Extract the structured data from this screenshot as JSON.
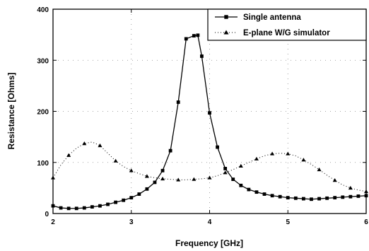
{
  "chart_data": {
    "type": "line",
    "xlabel": "Frequency [GHz]",
    "ylabel": "Resistance [Ohms]",
    "xlim": [
      2,
      6
    ],
    "ylim": [
      0,
      400
    ],
    "xticks": [
      2,
      3,
      4,
      5,
      6
    ],
    "yticks": [
      0,
      100,
      200,
      300,
      400
    ],
    "legend": {
      "position": "top-right"
    },
    "series": [
      {
        "name": "Single antenna",
        "marker": "square",
        "line": "solid",
        "color": "#000000",
        "x": [
          2.0,
          2.1,
          2.2,
          2.3,
          2.4,
          2.5,
          2.6,
          2.7,
          2.8,
          2.9,
          3.0,
          3.1,
          3.2,
          3.3,
          3.4,
          3.5,
          3.6,
          3.7,
          3.8,
          3.85,
          3.9,
          4.0,
          4.1,
          4.2,
          4.3,
          4.4,
          4.5,
          4.6,
          4.7,
          4.8,
          4.9,
          5.0,
          5.1,
          5.2,
          5.3,
          5.4,
          5.5,
          5.6,
          5.7,
          5.8,
          5.9,
          6.0
        ],
        "y": [
          15,
          11,
          10,
          10,
          11,
          13,
          15,
          18,
          22,
          26,
          31,
          38,
          48,
          61,
          84,
          123,
          218,
          342,
          348,
          349,
          308,
          197,
          130,
          88,
          67,
          55,
          47,
          42,
          38,
          35,
          33,
          31,
          30,
          29,
          28,
          29,
          30,
          31,
          32,
          33,
          34,
          35
        ]
      },
      {
        "name": "E-plane W/G simulator",
        "marker": "triangle",
        "line": "dotted",
        "color": "#000000",
        "x": [
          2.0,
          2.1,
          2.2,
          2.3,
          2.4,
          2.5,
          2.6,
          2.7,
          2.8,
          2.9,
          3.0,
          3.1,
          3.2,
          3.3,
          3.4,
          3.5,
          3.6,
          3.7,
          3.8,
          3.9,
          4.0,
          4.1,
          4.2,
          4.3,
          4.4,
          4.5,
          4.6,
          4.7,
          4.8,
          4.9,
          5.0,
          5.1,
          5.2,
          5.3,
          5.4,
          5.5,
          5.6,
          5.7,
          5.8,
          5.9,
          6.0
        ],
        "y": [
          70,
          95,
          114,
          128,
          137,
          140,
          133,
          118,
          103,
          92,
          84,
          78,
          73,
          70,
          68,
          67,
          66,
          66,
          67,
          68,
          70,
          74,
          80,
          86,
          93,
          100,
          107,
          113,
          117,
          118,
          117,
          113,
          105,
          96,
          86,
          75,
          65,
          56,
          50,
          46,
          43
        ]
      }
    ]
  }
}
